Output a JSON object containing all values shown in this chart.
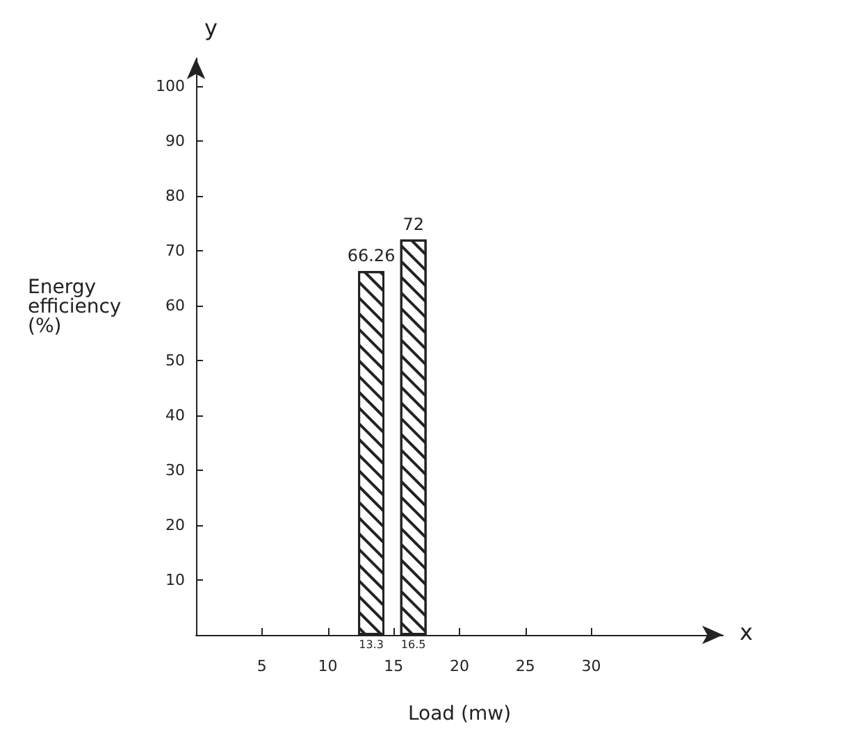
{
  "chart_data": {
    "type": "bar",
    "xlabel": "Load (mw)",
    "ylabel": "Energy efficiency (%)",
    "x": [
      13.3,
      16.5
    ],
    "values": [
      66.26,
      72
    ],
    "value_labels": [
      "66.26",
      "72"
    ],
    "color": "#222222",
    "xlim": [
      0,
      40
    ],
    "xticks": [
      5,
      10,
      15,
      20,
      25,
      30
    ],
    "ylim": [
      0,
      105
    ],
    "yticks": [
      10,
      20,
      30,
      40,
      50,
      60,
      70,
      80,
      90,
      100
    ],
    "grid": false,
    "annotations": [
      "x",
      "y",
      {
        "text": "13.3",
        "x": 13.3,
        "y": 0
      },
      {
        "text": "16.5",
        "x": 16.5,
        "y": 0
      }
    ]
  }
}
